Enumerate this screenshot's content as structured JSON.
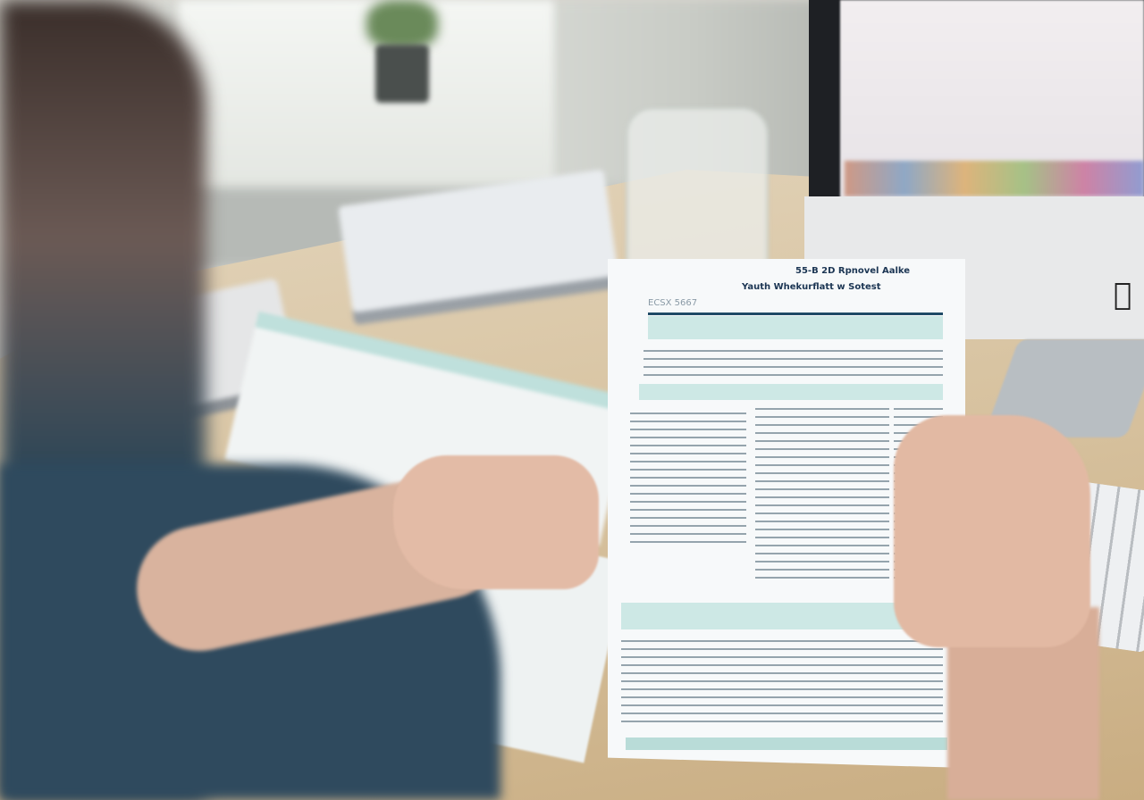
{
  "scene": {
    "description_tags": [
      "desk",
      "tax-form",
      "hands",
      "monitor"
    ]
  },
  "form": {
    "left_header": "ECSX 5667",
    "center_header": "Yauth Whekurflatt w Sotest",
    "right_header": "55-B 2D Rpnovel Aalke"
  },
  "colors": {
    "form_accent": "#1f4a66",
    "form_band": "#cde8e5",
    "desk": "#d7c29f",
    "shirt": "#2f4a5e"
  },
  "monitor": {
    "logo_icon": "apple-logo-icon"
  }
}
